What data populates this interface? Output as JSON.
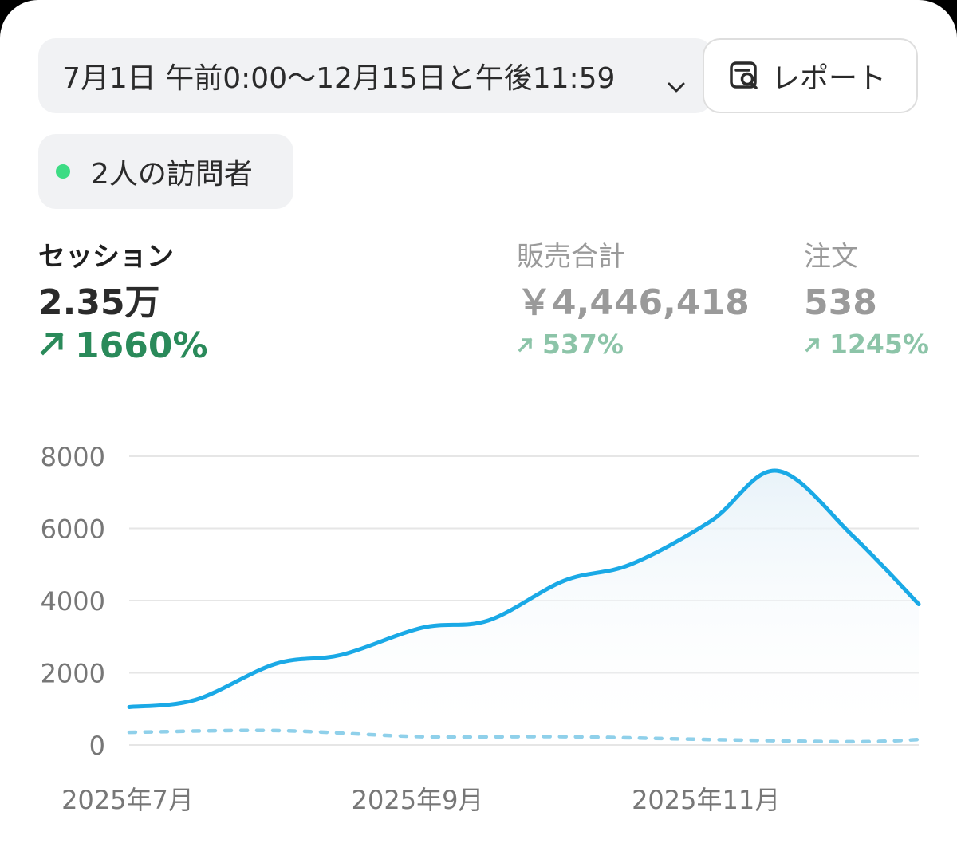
{
  "date_range": {
    "label": "7月1日 午前0:00〜12月15日と午後11:59"
  },
  "report_button": {
    "label": "レポート"
  },
  "visitors": {
    "label": "2人の訪問者",
    "dot_color": "#3ddc84"
  },
  "metrics": [
    {
      "label": "セッション",
      "value": "2.35万",
      "change": "1660%",
      "active": true
    },
    {
      "label": "販売合計",
      "value": "￥4,446,418",
      "change": "537%",
      "active": false
    },
    {
      "label": "注文",
      "value": "538",
      "change": "1245%",
      "active": false
    }
  ],
  "colors": {
    "accent_line": "#1aa9e6",
    "comparison_line": "#8fd0ea",
    "positive": "#2a8a5a",
    "positive_muted": "#8cc4a8",
    "grid": "#e6e6e6",
    "tick_text": "#777777"
  },
  "chart_data": {
    "type": "line",
    "ylim": [
      0,
      8000
    ],
    "yticks": [
      "0",
      "2000",
      "4000",
      "6000",
      "8000"
    ],
    "xtick_labels": [
      "2025年7月",
      "2025年9月",
      "2025年11月"
    ],
    "grid": true,
    "series": [
      {
        "style": "solid",
        "x": [
          "2025-07-01",
          "2025-07-15",
          "2025-08-01",
          "2025-08-15",
          "2025-09-01",
          "2025-09-15",
          "2025-10-01",
          "2025-10-15",
          "2025-11-01",
          "2025-11-15",
          "2025-12-01",
          "2025-12-15"
        ],
        "values": [
          1050,
          1250,
          2250,
          2500,
          3250,
          3450,
          4550,
          5000,
          6200,
          7600,
          5800,
          3900
        ]
      },
      {
        "style": "dashed",
        "x": [
          "2025-07-01",
          "2025-08-01",
          "2025-09-01",
          "2025-10-01",
          "2025-11-01",
          "2025-12-01",
          "2025-12-15"
        ],
        "values": [
          350,
          400,
          230,
          230,
          150,
          90,
          150
        ]
      }
    ]
  }
}
